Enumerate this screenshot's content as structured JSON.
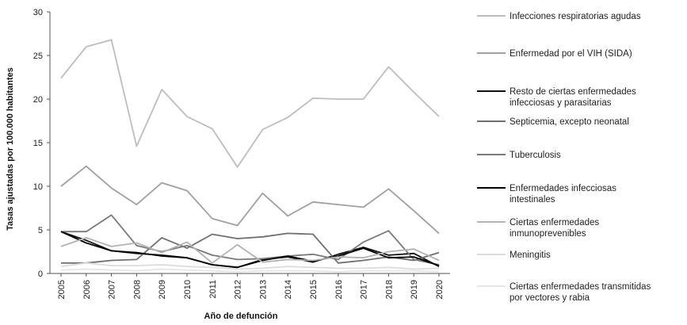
{
  "chart_data": {
    "type": "line",
    "title": "",
    "xlabel": "Año de defunción",
    "ylabel": "Tasas ajustadas por 100.000 habitantes",
    "ylim": [
      0,
      30
    ],
    "yticks": [
      0,
      5,
      10,
      15,
      20,
      25,
      30
    ],
    "x": [
      "2005",
      "2006",
      "2007",
      "2008",
      "2009",
      "2010",
      "2011",
      "2012",
      "2013",
      "2014",
      "2015",
      "2016",
      "2017",
      "2018",
      "2019",
      "2020"
    ],
    "legend_position": "right",
    "grid": false,
    "series": [
      {
        "name": "Infecciones respiratorias agudas",
        "color": "#bdbdbd",
        "values": [
          22.4,
          26.0,
          26.8,
          14.6,
          21.1,
          18.0,
          16.6,
          12.2,
          16.5,
          17.9,
          20.1,
          20.0,
          20.0,
          23.7,
          20.8,
          18.0
        ]
      },
      {
        "name": "Enfermedad por el VIH (SIDA)",
        "color": "#a0a0a0",
        "values": [
          10.0,
          12.3,
          9.8,
          7.9,
          10.4,
          9.5,
          6.3,
          5.5,
          9.2,
          6.6,
          8.2,
          7.9,
          7.6,
          9.7,
          7.2,
          4.6
        ]
      },
      {
        "name": "Resto de ciertas enfermedades infecciosas y parasitarias",
        "color": "#111111",
        "values": [
          4.8,
          3.8,
          2.6,
          2.3,
          2.1,
          1.8,
          1.0,
          0.7,
          1.6,
          1.9,
          1.3,
          2.2,
          3.0,
          2.1,
          2.3,
          0.8
        ]
      },
      {
        "name": "Septicemia, excepto neonatal",
        "color": "#707070",
        "values": [
          1.2,
          1.2,
          1.5,
          1.6,
          4.1,
          2.9,
          4.5,
          4.0,
          4.2,
          4.6,
          4.5,
          1.2,
          1.5,
          1.9,
          1.5,
          2.4
        ]
      },
      {
        "name": "Tuberculosis",
        "color": "#7a7a7a",
        "values": [
          4.8,
          4.8,
          6.7,
          3.2,
          2.5,
          3.2,
          2.1,
          1.6,
          1.7,
          2.0,
          2.2,
          1.6,
          3.6,
          4.9,
          1.6,
          1.0
        ]
      },
      {
        "name": "Enfermedades infecciosas intestinales",
        "color": "#000000",
        "values": [
          4.8,
          3.5,
          2.6,
          2.4,
          2.0,
          1.8,
          1.0,
          0.7,
          1.5,
          2.0,
          1.4,
          2.0,
          2.9,
          1.8,
          1.9,
          0.9
        ]
      },
      {
        "name": "Ciertas enfermedades inmunoprevenibles",
        "color": "#b3b3b3",
        "values": [
          3.1,
          4.1,
          3.1,
          3.5,
          2.4,
          3.6,
          1.2,
          3.3,
          1.3,
          1.6,
          1.5,
          1.9,
          1.8,
          2.5,
          2.8,
          1.5
        ]
      },
      {
        "name": "Meningitis",
        "color": "#dcdcdc",
        "values": [
          0.8,
          1.2,
          0.9,
          0.9,
          1.0,
          0.8,
          0.7,
          0.5,
          0.6,
          0.8,
          0.7,
          0.6,
          0.6,
          0.7,
          0.5,
          0.6
        ]
      },
      {
        "name": "Ciertas enfermedades transmitidas por vectores y rabia",
        "color": "#e6e6e6",
        "values": [
          0.4,
          0.5,
          0.4,
          0.3,
          0.5,
          0.4,
          0.3,
          0.2,
          0.3,
          0.3,
          0.3,
          0.2,
          0.3,
          0.3,
          0.3,
          0.2
        ]
      }
    ]
  }
}
